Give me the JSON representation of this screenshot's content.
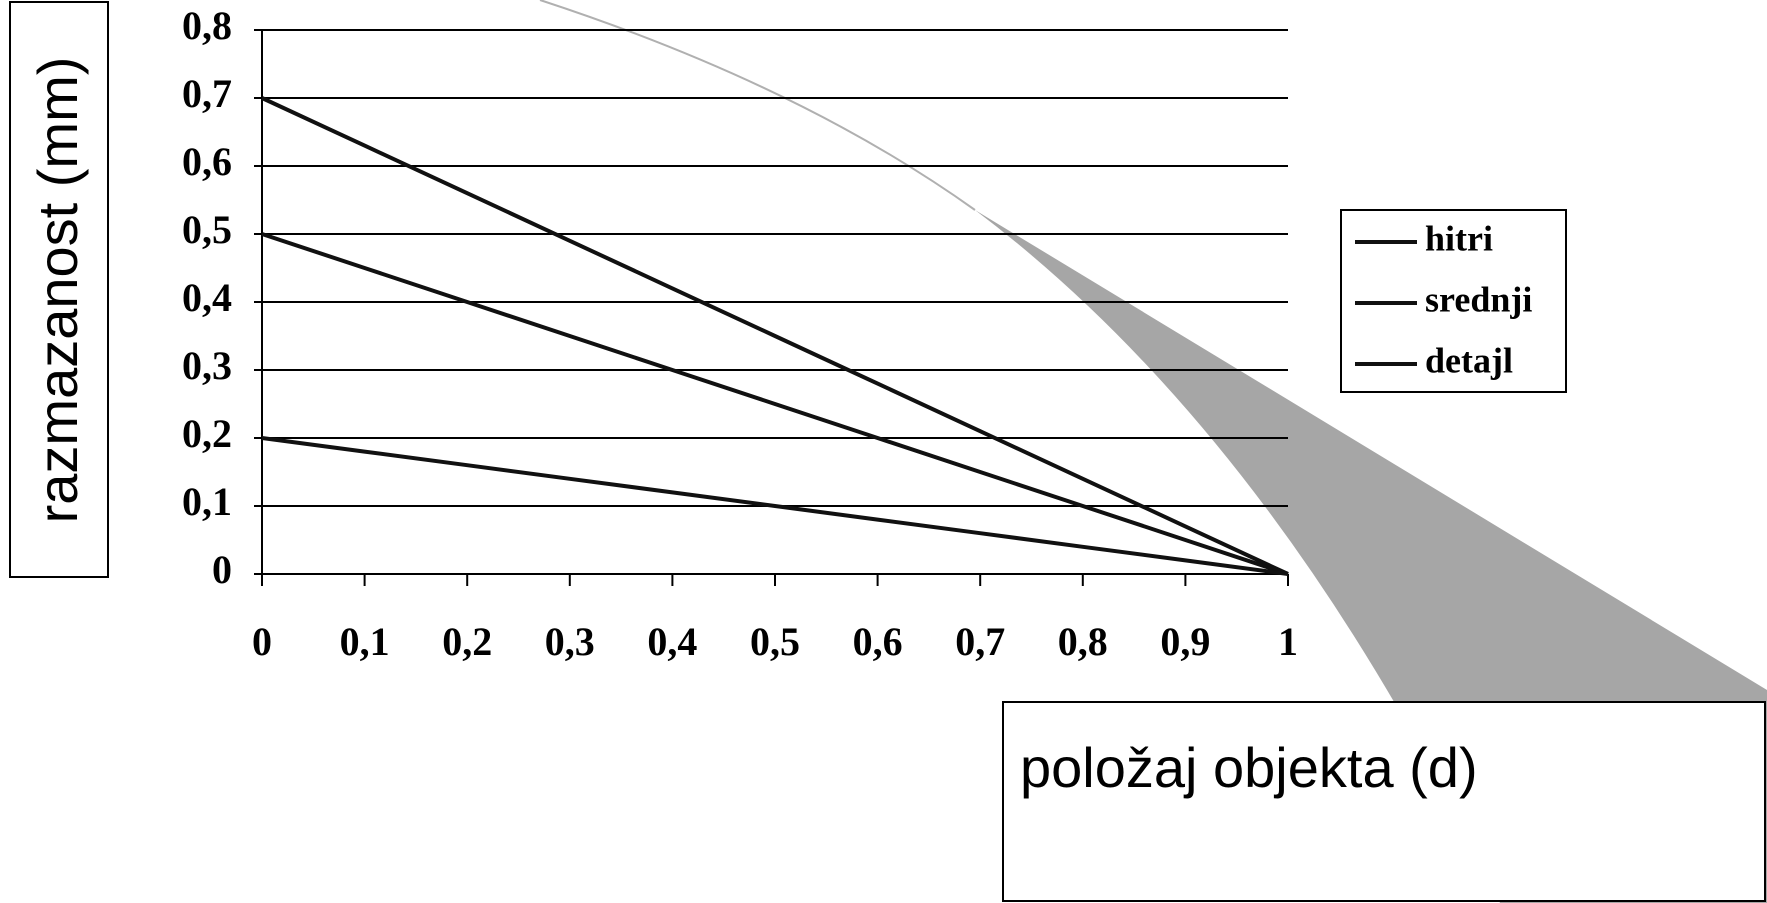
{
  "chart_data": {
    "type": "line",
    "x": [
      0,
      0.1,
      0.2,
      0.3,
      0.4,
      0.5,
      0.6,
      0.7,
      0.8,
      0.9,
      1
    ],
    "series": [
      {
        "name": "hitri",
        "color": "#111111",
        "values": [
          0.7,
          0.63,
          0.56,
          0.49,
          0.42,
          0.35,
          0.28,
          0.21,
          0.14,
          0.07,
          0
        ]
      },
      {
        "name": "srednji",
        "color": "#111111",
        "values": [
          0.5,
          0.45,
          0.4,
          0.35,
          0.3,
          0.25,
          0.2,
          0.15,
          0.1,
          0.05,
          0
        ]
      },
      {
        "name": "detajl",
        "color": "#111111",
        "values": [
          0.2,
          0.18,
          0.16,
          0.14,
          0.12,
          0.1,
          0.08,
          0.06,
          0.04,
          0.02,
          0
        ]
      }
    ],
    "xlim": [
      0,
      1
    ],
    "xticks": [
      0,
      {
        "value": 0.1,
        "label": "0,1"
      },
      {
        "value": 0.2,
        "label": "0,2"
      },
      {
        "value": 0.3,
        "label": "0,3"
      },
      {
        "value": 0.4,
        "label": "0,4"
      },
      {
        "value": 0.5,
        "label": "0,5"
      },
      {
        "value": 0.6,
        "label": "0,6"
      },
      {
        "value": 0.7,
        "label": "0,7"
      },
      {
        "value": 0.8,
        "label": "0,8"
      },
      {
        "value": 0.9,
        "label": "0,9"
      },
      1
    ],
    "ylim": [
      0,
      0.8
    ],
    "yticks": [
      0,
      {
        "value": 0.1,
        "label": "0,1"
      },
      {
        "value": 0.2,
        "label": "0,2"
      },
      {
        "value": 0.3,
        "label": "0,3"
      },
      {
        "value": 0.4,
        "label": "0,4"
      },
      {
        "value": 0.5,
        "label": "0,5"
      },
      {
        "value": 0.6,
        "label": "0,6"
      },
      {
        "value": 0.7,
        "label": "0,7"
      },
      {
        "value": 0.8,
        "label": "0,8"
      }
    ],
    "xlabel": "položaj objekta (d)",
    "ylabel": "razmazanost (mm)",
    "grid": true,
    "legend": "right"
  }
}
